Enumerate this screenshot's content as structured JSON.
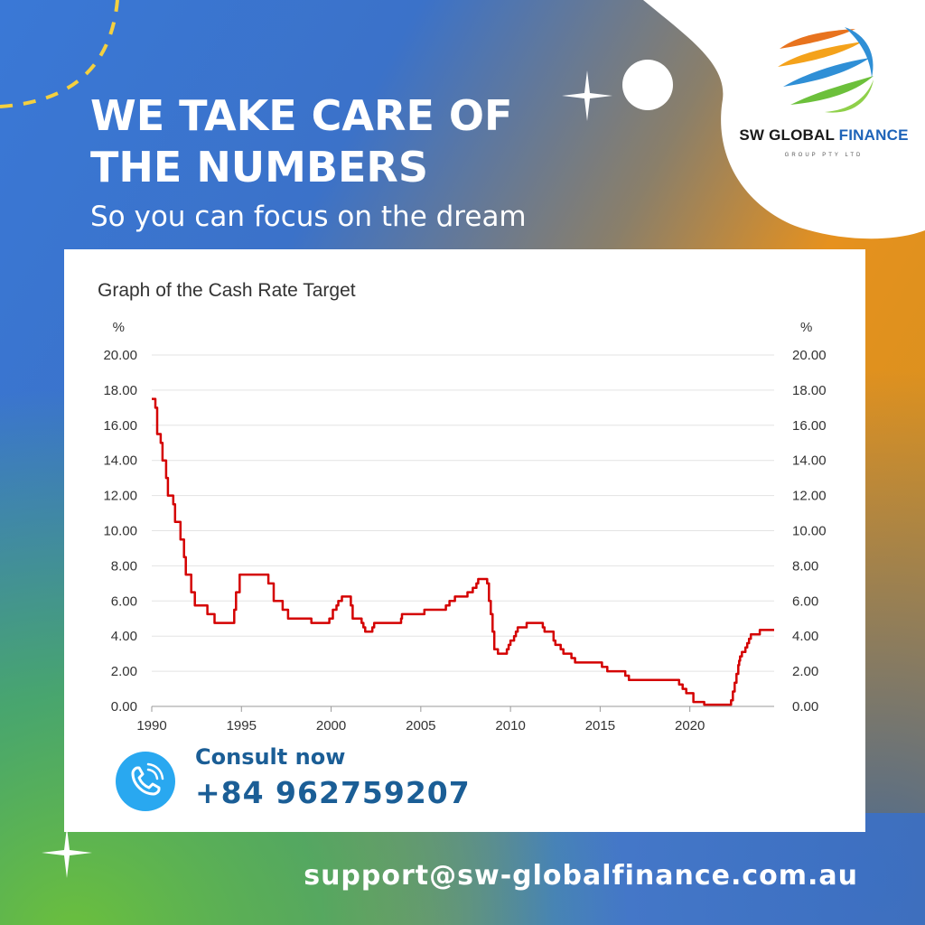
{
  "headline": "WE TAKE CARE OF THE NUMBERS",
  "subheadline": "So you can focus on the dream",
  "brand": {
    "name_part1": "SW GLOBAL",
    "name_part2": "FINANCE",
    "tagline": "GROUP PTY LTD"
  },
  "contact": {
    "cta": "Consult now",
    "phone": "+84 962759207",
    "email": "support@sw-globalfinance.com.au"
  },
  "icons": [
    "logo-swirl-icon",
    "phone-icon",
    "sparkle-icon"
  ],
  "colors": {
    "line": "#d40000",
    "accent_blue": "#1b5e96",
    "call_circle": "#29a8f0",
    "bg_blue": "#3a7bd5",
    "bg_orange": "#e8901f",
    "bg_green": "#5fb847"
  },
  "chart_data": {
    "type": "line",
    "title": "Graph of the Cash Rate Target",
    "ylabel_left": "%",
    "ylabel_right": "%",
    "xlim": [
      1990,
      2024.7
    ],
    "ylim": [
      0,
      20
    ],
    "x_ticks": [
      1990,
      1995,
      2000,
      2005,
      2010,
      2015,
      2020
    ],
    "y_ticks": [
      "0.00",
      "2.00",
      "4.00",
      "6.00",
      "8.00",
      "10.00",
      "12.00",
      "14.00",
      "16.00",
      "18.00",
      "20.00"
    ],
    "grid": true,
    "step": true,
    "series": [
      {
        "color": "#d40000",
        "points": [
          [
            1990.0,
            17.5
          ],
          [
            1990.2,
            17.0
          ],
          [
            1990.3,
            15.5
          ],
          [
            1990.5,
            15.0
          ],
          [
            1990.6,
            14.0
          ],
          [
            1990.8,
            13.0
          ],
          [
            1990.9,
            12.0
          ],
          [
            1991.2,
            11.5
          ],
          [
            1991.3,
            10.5
          ],
          [
            1991.6,
            9.5
          ],
          [
            1991.8,
            8.5
          ],
          [
            1991.9,
            7.5
          ],
          [
            1992.2,
            6.5
          ],
          [
            1992.4,
            5.75
          ],
          [
            1993.1,
            5.25
          ],
          [
            1993.5,
            4.75
          ],
          [
            1994.6,
            5.5
          ],
          [
            1994.7,
            6.5
          ],
          [
            1994.9,
            7.5
          ],
          [
            1996.5,
            7.0
          ],
          [
            1996.8,
            6.0
          ],
          [
            1997.3,
            5.5
          ],
          [
            1997.6,
            5.0
          ],
          [
            1998.9,
            4.75
          ],
          [
            1999.9,
            5.0
          ],
          [
            2000.1,
            5.5
          ],
          [
            2000.3,
            5.75
          ],
          [
            2000.4,
            6.0
          ],
          [
            2000.6,
            6.25
          ],
          [
            2001.1,
            5.75
          ],
          [
            2001.2,
            5.0
          ],
          [
            2001.7,
            4.75
          ],
          [
            2001.8,
            4.5
          ],
          [
            2001.9,
            4.25
          ],
          [
            2002.3,
            4.5
          ],
          [
            2002.4,
            4.75
          ],
          [
            2003.9,
            5.0
          ],
          [
            2003.95,
            5.25
          ],
          [
            2005.2,
            5.5
          ],
          [
            2006.4,
            5.75
          ],
          [
            2006.6,
            6.0
          ],
          [
            2006.9,
            6.25
          ],
          [
            2007.6,
            6.5
          ],
          [
            2007.9,
            6.75
          ],
          [
            2008.1,
            7.0
          ],
          [
            2008.2,
            7.25
          ],
          [
            2008.7,
            7.0
          ],
          [
            2008.8,
            6.0
          ],
          [
            2008.9,
            5.25
          ],
          [
            2009.0,
            4.25
          ],
          [
            2009.1,
            3.25
          ],
          [
            2009.3,
            3.0
          ],
          [
            2009.8,
            3.25
          ],
          [
            2009.9,
            3.5
          ],
          [
            2010.0,
            3.75
          ],
          [
            2010.2,
            4.0
          ],
          [
            2010.3,
            4.25
          ],
          [
            2010.4,
            4.5
          ],
          [
            2010.9,
            4.75
          ],
          [
            2011.8,
            4.5
          ],
          [
            2011.9,
            4.25
          ],
          [
            2012.4,
            3.75
          ],
          [
            2012.5,
            3.5
          ],
          [
            2012.8,
            3.25
          ],
          [
            2012.95,
            3.0
          ],
          [
            2013.4,
            2.75
          ],
          [
            2013.6,
            2.5
          ],
          [
            2015.1,
            2.25
          ],
          [
            2015.4,
            2.0
          ],
          [
            2016.4,
            1.75
          ],
          [
            2016.6,
            1.5
          ],
          [
            2019.4,
            1.25
          ],
          [
            2019.6,
            1.0
          ],
          [
            2019.8,
            0.75
          ],
          [
            2020.2,
            0.25
          ],
          [
            2020.8,
            0.1
          ],
          [
            2022.3,
            0.35
          ],
          [
            2022.4,
            0.85
          ],
          [
            2022.5,
            1.35
          ],
          [
            2022.6,
            1.85
          ],
          [
            2022.7,
            2.35
          ],
          [
            2022.75,
            2.6
          ],
          [
            2022.8,
            2.85
          ],
          [
            2022.9,
            3.1
          ],
          [
            2023.1,
            3.35
          ],
          [
            2023.2,
            3.6
          ],
          [
            2023.3,
            3.85
          ],
          [
            2023.4,
            4.1
          ],
          [
            2023.9,
            4.35
          ],
          [
            2024.7,
            4.35
          ]
        ]
      }
    ]
  }
}
